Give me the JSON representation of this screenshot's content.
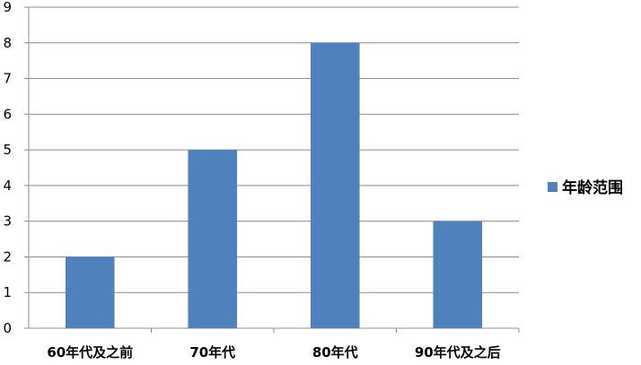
{
  "chart_data": {
    "type": "bar",
    "title": "",
    "xlabel": "",
    "ylabel": "",
    "categories": [
      "60年代及之前",
      "70年代",
      "80年代",
      "90年代及之后"
    ],
    "series": [
      {
        "name": "年龄范围",
        "values": [
          2,
          5,
          8,
          3
        ],
        "color": "#4f81bd"
      }
    ],
    "ylim": [
      0,
      9
    ],
    "yticks": [
      "0",
      "1",
      "2",
      "3",
      "4",
      "5",
      "6",
      "7",
      "8",
      "9"
    ],
    "grid": true,
    "legend_position": "right"
  }
}
